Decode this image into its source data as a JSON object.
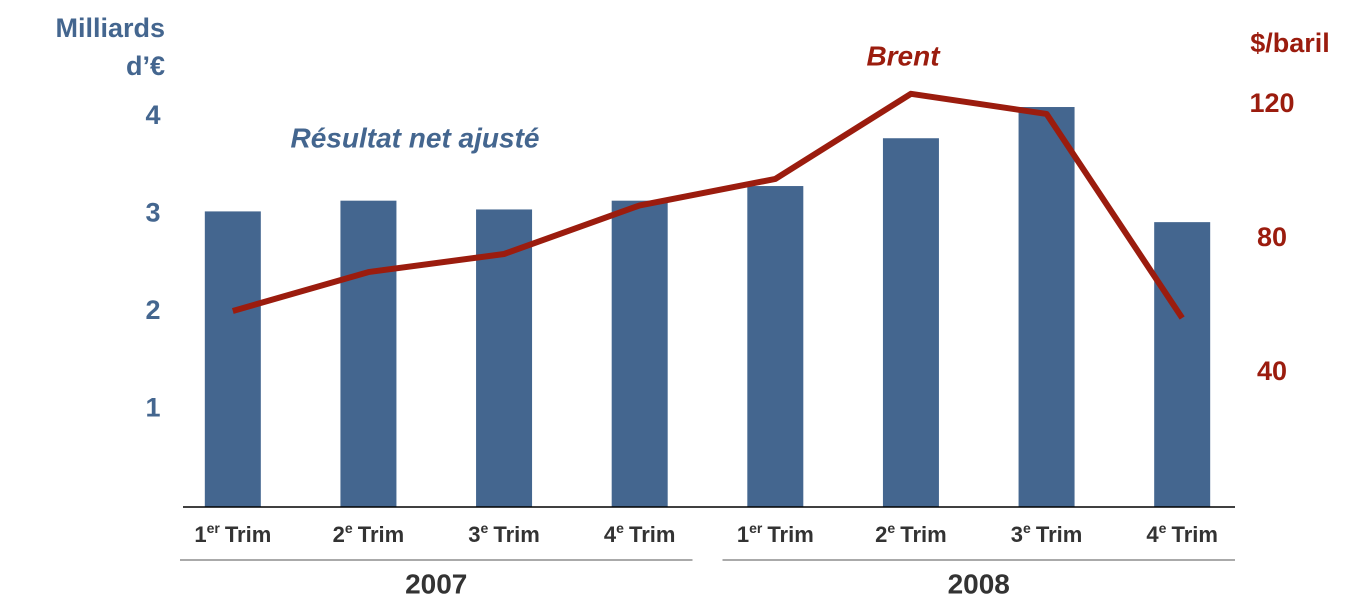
{
  "chart_data": {
    "type": "bar_line",
    "y_label": [
      "Milliards",
      "d’€"
    ],
    "y2_label": "$/baril",
    "annotations": [
      "Résultat net ajusté",
      "Brent"
    ],
    "categories": [
      {
        "number": "1",
        "suffix": "er",
        "label": "Trim"
      },
      {
        "number": "2",
        "suffix": "e",
        "label": "Trim"
      },
      {
        "number": "3",
        "suffix": "e",
        "label": "Trim"
      },
      {
        "number": "4",
        "suffix": "e",
        "label": "Trim"
      },
      {
        "number": "1",
        "suffix": "er",
        "label": "Trim"
      },
      {
        "number": "2",
        "suffix": "e",
        "label": "Trim"
      },
      {
        "number": "3",
        "suffix": "e",
        "label": "Trim"
      },
      {
        "number": "4",
        "suffix": "e",
        "label": "Trim"
      }
    ],
    "groups": [
      {
        "label": "2007",
        "span": 4
      },
      {
        "label": "2008",
        "span": 4
      }
    ],
    "series": [
      {
        "name": "Résultat net ajusté",
        "type": "bar",
        "color": "#44668f",
        "values": [
          3.03,
          3.14,
          3.05,
          3.14,
          3.29,
          3.78,
          4.1,
          2.92
        ]
      },
      {
        "name": "Brent",
        "type": "line",
        "axis": "y2",
        "color": "#9b1c0e",
        "values": [
          58.5,
          70.1,
          75.5,
          90,
          97.9,
          123.3,
          117.3,
          56.4
        ]
      }
    ],
    "ylim": [
      0,
      4.5
    ],
    "yticks": [
      1,
      2,
      3,
      4
    ],
    "y2lim": [
      0,
      131
    ],
    "y2ticks": [
      40,
      80,
      120
    ]
  }
}
